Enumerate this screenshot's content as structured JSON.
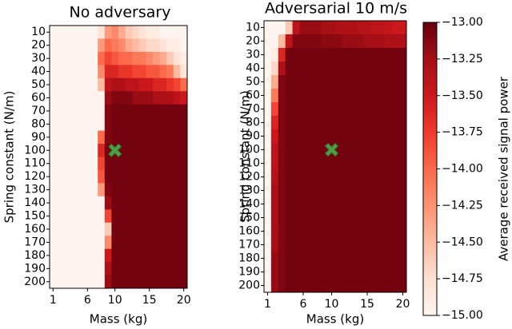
{
  "chart_data": [
    {
      "type": "heatmap",
      "title": "No adversary",
      "xlabel": "Mass (kg)",
      "ylabel": "Spring constant (N/m)",
      "x": [
        1,
        2,
        3,
        4,
        5,
        6,
        7,
        8,
        9,
        10,
        11,
        12,
        13,
        14,
        15,
        16,
        17,
        18,
        19,
        20
      ],
      "y": [
        10,
        20,
        30,
        40,
        50,
        60,
        70,
        80,
        90,
        100,
        110,
        120,
        130,
        140,
        150,
        160,
        170,
        180,
        190,
        200
      ],
      "xlim": [
        0.5,
        20.5
      ],
      "ylim": [
        205,
        5
      ],
      "xticks": [
        1,
        6,
        10,
        15,
        20
      ],
      "yticks": [
        10,
        20,
        30,
        40,
        50,
        60,
        70,
        80,
        90,
        100,
        110,
        120,
        130,
        140,
        150,
        160,
        170,
        180,
        190,
        200
      ],
      "marker": {
        "x": 10,
        "y": 100,
        "color": "#4caf50"
      },
      "values": [
        [
          -15,
          -15,
          -15,
          -15,
          -15,
          -15,
          -15,
          -14.8,
          -14.3,
          -14.2,
          -14.4,
          -14.6,
          -14.7,
          -14.8,
          -14.9,
          -14.9,
          -15,
          -15,
          -15,
          -15
        ],
        [
          -15,
          -15,
          -15,
          -15,
          -15,
          -15,
          -15,
          -14.3,
          -14.0,
          -14.1,
          -14.2,
          -14.4,
          -14.5,
          -14.6,
          -14.7,
          -14.7,
          -14.8,
          -14.9,
          -14.9,
          -15
        ],
        [
          -15,
          -15,
          -15,
          -15,
          -15,
          -15,
          -15,
          -14.0,
          -13.8,
          -13.9,
          -14.0,
          -14.0,
          -14.1,
          -14.1,
          -14.2,
          -14.3,
          -14.4,
          -14.6,
          -14.8,
          -14.9
        ],
        [
          -15,
          -15,
          -15,
          -15,
          -15,
          -15,
          -15,
          -14.2,
          -13.6,
          -13.6,
          -13.7,
          -13.7,
          -13.8,
          -13.8,
          -13.9,
          -13.9,
          -14.0,
          -14.1,
          -14.5,
          -14.8
        ],
        [
          -15,
          -15,
          -15,
          -15,
          -15,
          -15,
          -15,
          -14.5,
          -13.4,
          -13.3,
          -13.3,
          -13.4,
          -13.4,
          -13.5,
          -13.5,
          -13.6,
          -13.6,
          -13.7,
          -13.8,
          -14.0
        ],
        [
          -15,
          -15,
          -15,
          -15,
          -15,
          -15,
          -15,
          -15,
          -13.2,
          -13.1,
          -13.1,
          -13.1,
          -13.2,
          -13.2,
          -13.2,
          -13.3,
          -13.3,
          -13.3,
          -13.4,
          -13.5
        ],
        [
          -15,
          -15,
          -15,
          -15,
          -15,
          -15,
          -15,
          -15,
          -13.1,
          -13.05,
          -13.05,
          -13.05,
          -13.05,
          -13.05,
          -13.05,
          -13.05,
          -13.05,
          -13.05,
          -13.05,
          -13.05
        ],
        [
          -15,
          -15,
          -15,
          -15,
          -15,
          -15,
          -15,
          -15,
          -13.1,
          -13.05,
          -13.05,
          -13.05,
          -13.05,
          -13.05,
          -13.05,
          -13.05,
          -13.05,
          -13.05,
          -13.05,
          -13.05
        ],
        [
          -15,
          -15,
          -15,
          -15,
          -15,
          -15,
          -15,
          -14.0,
          -13.1,
          -13.05,
          -13.05,
          -13.05,
          -13.05,
          -13.05,
          -13.05,
          -13.05,
          -13.05,
          -13.05,
          -13.05,
          -13.05
        ],
        [
          -15,
          -15,
          -15,
          -15,
          -15,
          -15,
          -15,
          -13.6,
          -13.05,
          -13.05,
          -13.05,
          -13.05,
          -13.05,
          -13.05,
          -13.05,
          -13.05,
          -13.05,
          -13.05,
          -13.05,
          -13.05
        ],
        [
          -15,
          -15,
          -15,
          -15,
          -15,
          -15,
          -15,
          -13.8,
          -13.05,
          -13.05,
          -13.05,
          -13.05,
          -13.05,
          -13.05,
          -13.05,
          -13.05,
          -13.05,
          -13.05,
          -13.05,
          -13.05
        ],
        [
          -15,
          -15,
          -15,
          -15,
          -15,
          -15,
          -15,
          -13.9,
          -13.05,
          -13.05,
          -13.05,
          -13.05,
          -13.05,
          -13.05,
          -13.05,
          -13.05,
          -13.05,
          -13.05,
          -13.05,
          -13.05
        ],
        [
          -15,
          -15,
          -15,
          -15,
          -15,
          -15,
          -15,
          -14.3,
          -13.1,
          -13.05,
          -13.05,
          -13.05,
          -13.05,
          -13.05,
          -13.05,
          -13.05,
          -13.05,
          -13.05,
          -13.05,
          -13.05
        ],
        [
          -15,
          -15,
          -15,
          -15,
          -15,
          -15,
          -15,
          -15,
          -13.2,
          -13.05,
          -13.05,
          -13.05,
          -13.05,
          -13.05,
          -13.05,
          -13.05,
          -13.05,
          -13.05,
          -13.05,
          -13.05
        ],
        [
          -15,
          -15,
          -15,
          -15,
          -15,
          -15,
          -15,
          -15,
          -13.8,
          -13.05,
          -13.05,
          -13.05,
          -13.05,
          -13.05,
          -13.05,
          -13.05,
          -13.05,
          -13.05,
          -13.05,
          -13.05
        ],
        [
          -15,
          -15,
          -15,
          -15,
          -15,
          -15,
          -15,
          -15,
          -14.6,
          -13.05,
          -13.05,
          -13.05,
          -13.05,
          -13.05,
          -13.05,
          -13.05,
          -13.05,
          -13.05,
          -13.05,
          -13.05
        ],
        [
          -15,
          -15,
          -15,
          -15,
          -15,
          -15,
          -15,
          -15,
          -14.2,
          -13.05,
          -13.05,
          -13.05,
          -13.05,
          -13.05,
          -13.05,
          -13.05,
          -13.05,
          -13.05,
          -13.05,
          -13.05
        ],
        [
          -15,
          -15,
          -15,
          -15,
          -15,
          -15,
          -15,
          -15,
          -13.5,
          -13.05,
          -13.05,
          -13.05,
          -13.05,
          -13.05,
          -13.05,
          -13.05,
          -13.05,
          -13.05,
          -13.05,
          -13.05
        ],
        [
          -15,
          -15,
          -15,
          -15,
          -15,
          -15,
          -15,
          -15,
          -13.3,
          -13.05,
          -13.05,
          -13.05,
          -13.05,
          -13.05,
          -13.05,
          -13.05,
          -13.05,
          -13.05,
          -13.05,
          -13.05
        ],
        [
          -15,
          -15,
          -15,
          -15,
          -15,
          -15,
          -15,
          -15,
          -13.2,
          -13.05,
          -13.05,
          -13.05,
          -13.05,
          -13.05,
          -13.05,
          -13.05,
          -13.05,
          -13.05,
          -13.05,
          -13.05
        ]
      ]
    },
    {
      "type": "heatmap",
      "title": "Adversarial 10 m/s",
      "xlabel": "Mass (kg)",
      "ylabel": "Spring constant (N/m)",
      "x": [
        1,
        2,
        3,
        4,
        5,
        6,
        7,
        8,
        9,
        10,
        11,
        12,
        13,
        14,
        15,
        16,
        17,
        18,
        19,
        20
      ],
      "y": [
        10,
        20,
        30,
        40,
        50,
        60,
        70,
        80,
        90,
        100,
        110,
        120,
        130,
        140,
        150,
        160,
        170,
        180,
        190,
        200
      ],
      "xlim": [
        0.5,
        20.5
      ],
      "ylim": [
        205,
        5
      ],
      "xticks": [
        1,
        6,
        10,
        15,
        20
      ],
      "yticks": [
        10,
        20,
        30,
        40,
        50,
        60,
        70,
        80,
        90,
        100,
        110,
        120,
        130,
        140,
        150,
        160,
        170,
        180,
        190,
        200
      ],
      "marker": {
        "x": 10,
        "y": 100,
        "color": "#4caf50"
      },
      "values": [
        [
          -15,
          -15,
          -15,
          -14.6,
          -13.4,
          -13.2,
          -13.2,
          -13.2,
          -13.25,
          -13.25,
          -13.3,
          -13.3,
          -13.3,
          -13.35,
          -13.35,
          -13.4,
          -13.4,
          -13.45,
          -13.5,
          -13.5
        ],
        [
          -15,
          -15,
          -14.5,
          -13.4,
          -13.1,
          -13.1,
          -13.1,
          -13.1,
          -13.15,
          -13.15,
          -13.15,
          -13.2,
          -13.2,
          -13.2,
          -13.25,
          -13.25,
          -13.25,
          -13.3,
          -13.3,
          -13.3
        ],
        [
          -15,
          -14.9,
          -13.6,
          -13.05,
          -13.05,
          -13.05,
          -13.05,
          -13.05,
          -13.05,
          -13.05,
          -13.05,
          -13.05,
          -13.05,
          -13.05,
          -13.05,
          -13.05,
          -13.05,
          -13.05,
          -13.05,
          -13.05
        ],
        [
          -15,
          -14.7,
          -13.3,
          -13.05,
          -13.05,
          -13.05,
          -13.05,
          -13.05,
          -13.05,
          -13.05,
          -13.05,
          -13.05,
          -13.05,
          -13.05,
          -13.05,
          -13.05,
          -13.05,
          -13.05,
          -13.05,
          -13.05
        ],
        [
          -15,
          -14.4,
          -13.1,
          -13.05,
          -13.05,
          -13.05,
          -13.05,
          -13.05,
          -13.05,
          -13.05,
          -13.05,
          -13.05,
          -13.05,
          -13.05,
          -13.05,
          -13.05,
          -13.05,
          -13.05,
          -13.05,
          -13.05
        ],
        [
          -15,
          -14.1,
          -13.1,
          -13.05,
          -13.05,
          -13.05,
          -13.05,
          -13.05,
          -13.05,
          -13.05,
          -13.05,
          -13.05,
          -13.05,
          -13.05,
          -13.05,
          -13.05,
          -13.05,
          -13.05,
          -13.05,
          -13.05
        ],
        [
          -15,
          -13.8,
          -13.1,
          -13.05,
          -13.05,
          -13.05,
          -13.05,
          -13.05,
          -13.05,
          -13.05,
          -13.05,
          -13.05,
          -13.05,
          -13.05,
          -13.05,
          -13.05,
          -13.05,
          -13.05,
          -13.05,
          -13.05
        ],
        [
          -15,
          -13.6,
          -13.1,
          -13.05,
          -13.05,
          -13.05,
          -13.05,
          -13.05,
          -13.05,
          -13.05,
          -13.05,
          -13.05,
          -13.05,
          -13.05,
          -13.05,
          -13.05,
          -13.05,
          -13.05,
          -13.05,
          -13.05
        ],
        [
          -15,
          -13.5,
          -13.1,
          -13.05,
          -13.05,
          -13.05,
          -13.05,
          -13.05,
          -13.05,
          -13.05,
          -13.05,
          -13.05,
          -13.05,
          -13.05,
          -13.05,
          -13.05,
          -13.05,
          -13.05,
          -13.05,
          -13.05
        ],
        [
          -15,
          -13.4,
          -13.1,
          -13.05,
          -13.05,
          -13.05,
          -13.05,
          -13.05,
          -13.05,
          -13.05,
          -13.05,
          -13.05,
          -13.05,
          -13.05,
          -13.05,
          -13.05,
          -13.05,
          -13.05,
          -13.05,
          -13.05
        ],
        [
          -15,
          -13.4,
          -13.1,
          -13.05,
          -13.05,
          -13.05,
          -13.05,
          -13.05,
          -13.05,
          -13.05,
          -13.05,
          -13.05,
          -13.05,
          -13.05,
          -13.05,
          -13.05,
          -13.05,
          -13.05,
          -13.05,
          -13.05
        ],
        [
          -15,
          -13.35,
          -13.1,
          -13.05,
          -13.05,
          -13.05,
          -13.05,
          -13.05,
          -13.05,
          -13.05,
          -13.05,
          -13.05,
          -13.05,
          -13.05,
          -13.05,
          -13.05,
          -13.05,
          -13.05,
          -13.05,
          -13.05
        ],
        [
          -15,
          -13.3,
          -13.1,
          -13.05,
          -13.05,
          -13.05,
          -13.05,
          -13.05,
          -13.05,
          -13.05,
          -13.05,
          -13.05,
          -13.05,
          -13.05,
          -13.05,
          -13.05,
          -13.05,
          -13.05,
          -13.05,
          -13.05
        ],
        [
          -15,
          -13.3,
          -13.1,
          -13.05,
          -13.05,
          -13.05,
          -13.05,
          -13.05,
          -13.05,
          -13.05,
          -13.05,
          -13.05,
          -13.05,
          -13.05,
          -13.05,
          -13.05,
          -13.05,
          -13.05,
          -13.05,
          -13.05
        ],
        [
          -15,
          -13.3,
          -13.1,
          -13.05,
          -13.05,
          -13.05,
          -13.05,
          -13.05,
          -13.05,
          -13.05,
          -13.05,
          -13.05,
          -13.05,
          -13.05,
          -13.05,
          -13.05,
          -13.05,
          -13.05,
          -13.05,
          -13.05
        ],
        [
          -15,
          -13.25,
          -13.1,
          -13.05,
          -13.05,
          -13.05,
          -13.05,
          -13.05,
          -13.05,
          -13.05,
          -13.05,
          -13.05,
          -13.05,
          -13.05,
          -13.05,
          -13.05,
          -13.05,
          -13.05,
          -13.05,
          -13.05
        ],
        [
          -15,
          -13.25,
          -13.1,
          -13.05,
          -13.05,
          -13.05,
          -13.05,
          -13.05,
          -13.05,
          -13.05,
          -13.05,
          -13.05,
          -13.05,
          -13.05,
          -13.05,
          -13.05,
          -13.05,
          -13.05,
          -13.05,
          -13.05
        ],
        [
          -15,
          -13.2,
          -13.1,
          -13.05,
          -13.05,
          -13.05,
          -13.05,
          -13.05,
          -13.05,
          -13.05,
          -13.05,
          -13.05,
          -13.05,
          -13.05,
          -13.05,
          -13.05,
          -13.05,
          -13.05,
          -13.05,
          -13.05
        ],
        [
          -15,
          -13.2,
          -13.1,
          -13.05,
          -13.05,
          -13.05,
          -13.05,
          -13.05,
          -13.05,
          -13.05,
          -13.05,
          -13.05,
          -13.05,
          -13.05,
          -13.05,
          -13.05,
          -13.05,
          -13.05,
          -13.05,
          -13.05
        ],
        [
          -15,
          -13.2,
          -13.1,
          -13.05,
          -13.05,
          -13.05,
          -13.05,
          -13.05,
          -13.05,
          -13.05,
          -13.05,
          -13.05,
          -13.05,
          -13.05,
          -13.05,
          -13.05,
          -13.05,
          -13.05,
          -13.05,
          -13.05
        ]
      ]
    }
  ],
  "colorbar": {
    "label": "Average received signal power",
    "zlim": [
      -15,
      -13
    ],
    "colormap": [
      "#fff5f0",
      "#fee0d2",
      "#fcbba1",
      "#fc9272",
      "#fb6a4a",
      "#ef3b2c",
      "#cb181d",
      "#a50f15",
      "#67000d"
    ],
    "zticks": [
      {
        "value": -13,
        "label": "−13.00"
      },
      {
        "value": -13.25,
        "label": "−13.25"
      },
      {
        "value": -13.5,
        "label": "−13.50"
      },
      {
        "value": -13.75,
        "label": "−13.75"
      },
      {
        "value": -14,
        "label": "−14.00"
      },
      {
        "value": -14.25,
        "label": "−14.25"
      },
      {
        "value": -14.5,
        "label": "−14.50"
      },
      {
        "value": -14.75,
        "label": "−14.75"
      },
      {
        "value": -15,
        "label": "−15.00"
      }
    ]
  }
}
